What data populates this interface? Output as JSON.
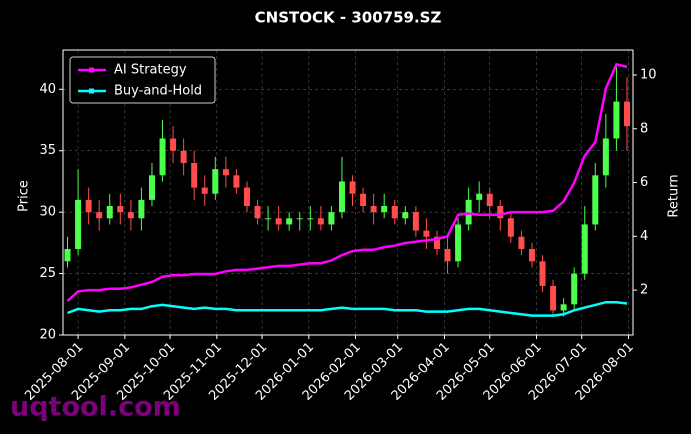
{
  "chart_data": {
    "type": "candlestick",
    "title": "CNSTOCK - 300759.SZ",
    "y_label": "Price",
    "y2_label": "Return",
    "watermark": "uqtool.com",
    "x": [
      "2025-07-25",
      "2025-08-01",
      "2025-08-08",
      "2025-08-15",
      "2025-08-22",
      "2025-08-29",
      "2025-09-05",
      "2025-09-12",
      "2025-09-19",
      "2025-09-26",
      "2025-10-03",
      "2025-10-10",
      "2025-10-17",
      "2025-10-24",
      "2025-10-31",
      "2025-11-07",
      "2025-11-14",
      "2025-11-21",
      "2025-11-28",
      "2025-12-05",
      "2025-12-12",
      "2025-12-19",
      "2025-12-26",
      "2026-01-02",
      "2026-01-09",
      "2026-01-16",
      "2026-01-23",
      "2026-01-30",
      "2026-02-06",
      "2026-02-13",
      "2026-02-20",
      "2026-02-27",
      "2026-03-06",
      "2026-03-13",
      "2026-03-20",
      "2026-03-27",
      "2026-04-03",
      "2026-04-10",
      "2026-04-17",
      "2026-04-24",
      "2026-05-01",
      "2026-05-08",
      "2026-05-15",
      "2026-05-22",
      "2026-05-29",
      "2026-06-05",
      "2026-06-12",
      "2026-06-19",
      "2026-06-26",
      "2026-07-03",
      "2026-07-10",
      "2026-07-17",
      "2026-07-24",
      "2026-07-31"
    ],
    "open": [
      26,
      27,
      31,
      30,
      29.5,
      30.5,
      30,
      29.5,
      31,
      33,
      36,
      35,
      34,
      32,
      31.5,
      33.5,
      33,
      32,
      30.5,
      29.5,
      29.5,
      29,
      29.5,
      29.5,
      29.5,
      29,
      30,
      32.5,
      31.5,
      30.5,
      30,
      30.5,
      29.5,
      30,
      28.5,
      28,
      27,
      26,
      29,
      31,
      31.5,
      30.5,
      29.5,
      28,
      27,
      26,
      24,
      22,
      22.5,
      25,
      29,
      33,
      36,
      39
    ],
    "high": [
      28,
      33.5,
      32,
      31,
      31.5,
      31.5,
      31,
      32,
      34,
      37.5,
      37,
      36,
      35,
      33,
      34.5,
      34.5,
      33.5,
      32.5,
      31,
      30.5,
      30.5,
      30,
      30,
      30.5,
      30.5,
      30.5,
      34.5,
      33,
      32,
      31.5,
      31.5,
      31,
      30.5,
      30.5,
      29.5,
      28.5,
      28,
      29.5,
      32,
      32.5,
      32,
      31,
      30,
      28.5,
      27.5,
      26.5,
      24.5,
      23,
      25.5,
      30.5,
      34,
      38,
      42,
      41
    ],
    "low": [
      25.5,
      26.5,
      29,
      28.5,
      29,
      29,
      28.5,
      28.5,
      30.5,
      32.5,
      34,
      33,
      31,
      30.5,
      31,
      32,
      31.5,
      30,
      29,
      28.5,
      28.5,
      28.5,
      28.5,
      28.5,
      28.5,
      28.5,
      29.5,
      30.5,
      30,
      29,
      29.5,
      29,
      29,
      28,
      27,
      26.5,
      25,
      25.5,
      28.5,
      30,
      29.5,
      28.5,
      27.5,
      26.5,
      25.5,
      23.5,
      21.5,
      21.5,
      22,
      24.5,
      28.5,
      32,
      35,
      35
    ],
    "close": [
      27,
      31,
      30,
      29.5,
      30.5,
      30,
      29.5,
      31,
      33,
      36,
      35,
      34,
      32,
      31.5,
      33.5,
      33,
      32,
      30.5,
      29.5,
      29.5,
      29,
      29.5,
      29.5,
      29.5,
      29,
      30,
      32.5,
      31.5,
      30.5,
      30,
      30.5,
      29.5,
      30,
      28.5,
      28,
      27,
      26,
      29,
      31,
      31.5,
      30.5,
      29.5,
      28,
      27,
      26,
      24,
      22,
      22.5,
      25,
      29,
      33,
      36,
      39,
      37
    ],
    "up_color": "#4dff4d",
    "down_color": "#ff4d4d",
    "series": [
      {
        "name": "AI Strategy",
        "color": "#ff00ff",
        "axis": "y2",
        "values": [
          1.6,
          1.95,
          2.0,
          2.0,
          2.05,
          2.05,
          2.1,
          2.2,
          2.3,
          2.5,
          2.55,
          2.55,
          2.6,
          2.6,
          2.6,
          2.7,
          2.75,
          2.75,
          2.8,
          2.85,
          2.9,
          2.9,
          2.95,
          3.0,
          3.0,
          3.1,
          3.3,
          3.45,
          3.5,
          3.5,
          3.6,
          3.65,
          3.75,
          3.8,
          3.85,
          3.9,
          4.0,
          4.8,
          4.85,
          4.8,
          4.8,
          4.8,
          4.9,
          4.9,
          4.9,
          4.9,
          4.95,
          5.3,
          6.0,
          7.0,
          7.5,
          9.5,
          10.4,
          10.3
        ]
      },
      {
        "name": "Buy-and-Hold",
        "color": "#00ffff",
        "axis": "y2",
        "values": [
          1.15,
          1.3,
          1.25,
          1.2,
          1.25,
          1.25,
          1.3,
          1.3,
          1.4,
          1.45,
          1.4,
          1.35,
          1.3,
          1.35,
          1.3,
          1.3,
          1.25,
          1.25,
          1.25,
          1.25,
          1.25,
          1.25,
          1.25,
          1.25,
          1.25,
          1.3,
          1.35,
          1.3,
          1.3,
          1.3,
          1.3,
          1.25,
          1.25,
          1.25,
          1.2,
          1.2,
          1.2,
          1.25,
          1.3,
          1.3,
          1.25,
          1.2,
          1.15,
          1.1,
          1.05,
          1.05,
          1.05,
          1.1,
          1.25,
          1.35,
          1.45,
          1.55,
          1.55,
          1.5
        ]
      }
    ],
    "xlim": [
      "2025-07-22",
      "2026-08-04"
    ],
    "xticks": [
      "2025-08-01",
      "2025-09-01",
      "2025-10-01",
      "2025-11-01",
      "2025-12-01",
      "2026-01-01",
      "2026-02-01",
      "2026-03-01",
      "2026-04-01",
      "2026-05-01",
      "2026-06-01",
      "2026-07-01",
      "2026-08-01"
    ],
    "ylim": [
      20,
      43.2
    ],
    "yticks": [
      20,
      25,
      30,
      35,
      40
    ],
    "y2lim": [
      0.33,
      10.93
    ],
    "y2ticks": [
      2,
      4,
      6,
      8,
      10
    ],
    "grid": true,
    "legend": "upper left"
  }
}
